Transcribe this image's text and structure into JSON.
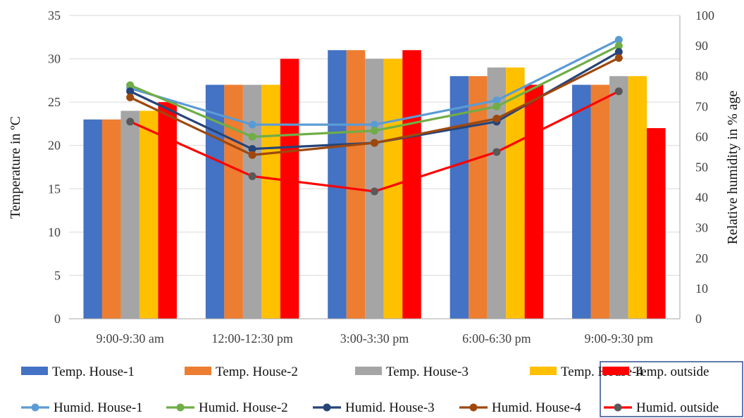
{
  "chart_data": {
    "type": "bar+line",
    "categories": [
      "9:00-9:30 am",
      "12:00-12:30 pm",
      "3:00-3:30 pm",
      "6:00-6:30 pm",
      "9:00-9:30 pm"
    ],
    "y_left": {
      "label": "Temperature in ºC",
      "ylim": [
        0,
        35
      ],
      "ticks": [
        0,
        5,
        10,
        15,
        20,
        25,
        30,
        35
      ]
    },
    "y_right": {
      "label": "Relative humidity in % age",
      "ylim": [
        0,
        100
      ],
      "ticks": [
        0,
        10,
        20,
        30,
        40,
        50,
        60,
        70,
        80,
        90,
        100
      ]
    },
    "bar_series": [
      {
        "name": "Temp. House-1",
        "color": "#4472C4",
        "values": [
          23,
          27,
          31,
          28,
          27
        ]
      },
      {
        "name": "Temp. House-2",
        "color": "#ED7D31",
        "values": [
          23,
          27,
          31,
          28,
          27
        ]
      },
      {
        "name": "Temp. House-3",
        "color": "#A5A5A5",
        "values": [
          24,
          27,
          30,
          29,
          28
        ]
      },
      {
        "name": "Temp. House-4",
        "color": "#FFC000",
        "values": [
          24,
          27,
          30,
          29,
          28
        ]
      },
      {
        "name": "Temp. outside",
        "color": "#FF0000",
        "values": [
          25,
          30,
          31,
          27,
          22
        ]
      }
    ],
    "line_series": [
      {
        "name": "Humid. House-1",
        "color": "#5B9BD5",
        "values": [
          76,
          64,
          64,
          72,
          92
        ]
      },
      {
        "name": "Humid. House-2",
        "color": "#70AD47",
        "values": [
          77,
          60,
          62,
          70,
          90
        ]
      },
      {
        "name": "Humid. House-3",
        "color": "#264478",
        "values": [
          75,
          56,
          58,
          65,
          88
        ]
      },
      {
        "name": "Humid. House-4",
        "color": "#9E480E",
        "values": [
          73,
          54,
          58,
          66,
          86
        ]
      },
      {
        "name": "Humid. outside",
        "color": "#FF0000",
        "marker_color": "#595959",
        "values": [
          65,
          47,
          42,
          55,
          75
        ]
      }
    ],
    "grid": true,
    "legend_position": "bottom"
  }
}
